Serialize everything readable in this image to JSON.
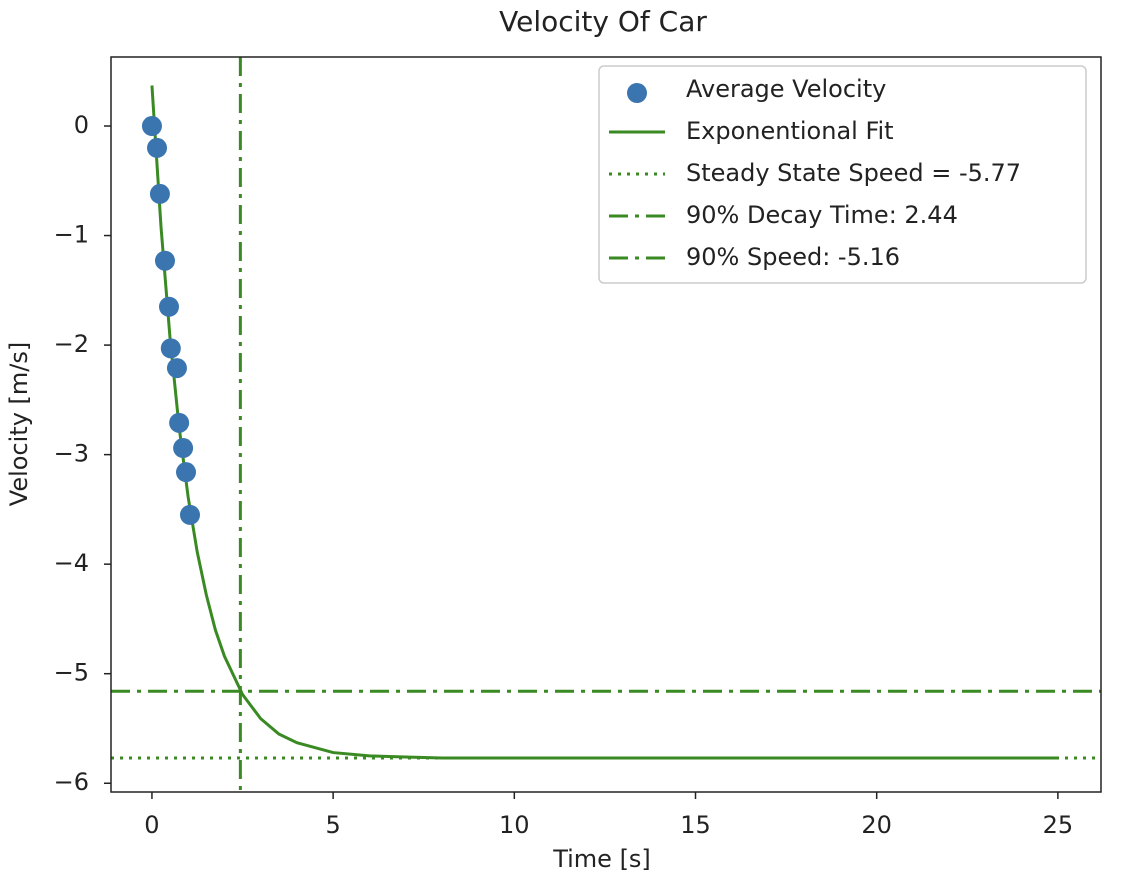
{
  "chart_data": {
    "type": "scatter",
    "title": "Velocity Of Car",
    "x_label": "Time [s]",
    "y_label": "Velocity [m/s]",
    "xlim": [
      -1.13,
      26.19
    ],
    "ylim": [
      -6.08,
      0.63
    ],
    "xticks": [
      0,
      5,
      10,
      15,
      20,
      25
    ],
    "yticks": [
      {
        "value": -6,
        "label": "−6"
      },
      {
        "value": -5,
        "label": "−5"
      },
      {
        "value": -4,
        "label": "−4"
      },
      {
        "value": -3,
        "label": "−3"
      },
      {
        "value": -2,
        "label": "−2"
      },
      {
        "value": -1,
        "label": "−1"
      },
      0
    ],
    "legend": "upper right",
    "series": [
      {
        "name": "Average Velocity",
        "type": "scatter",
        "color": "#3a75af",
        "x": [
          0,
          0.14,
          0.22,
          0.36,
          0.47,
          0.52,
          0.69,
          0.75,
          0.86,
          0.94,
          1.05
        ],
        "values": [
          0,
          -0.2,
          -0.62,
          -1.23,
          -1.65,
          -2.03,
          -2.21,
          -2.71,
          -2.94,
          -3.16,
          -3.55
        ]
      },
      {
        "name": "Exponentional Fit",
        "type": "line",
        "linestyle": "solid",
        "color": "#3a8a23",
        "x": [
          0,
          0.25,
          0.5,
          0.75,
          1,
          1.25,
          1.5,
          1.75,
          2,
          2.5,
          3,
          3.5,
          4,
          5,
          6,
          7,
          8,
          10,
          15,
          20,
          25
        ],
        "values": [
          0.37,
          -0.92,
          -1.94,
          -2.75,
          -3.39,
          -3.89,
          -4.28,
          -4.6,
          -4.84,
          -5.19,
          -5.41,
          -5.55,
          -5.63,
          -5.72,
          -5.75,
          -5.76,
          -5.77,
          -5.77,
          -5.77,
          -5.77,
          -5.77
        ]
      },
      {
        "name": "Steady State Speed = -5.77",
        "type": "hline",
        "linestyle": "dotted",
        "color": "#3a8a23",
        "value": -5.77
      },
      {
        "name": "90% Decay Time: 2.44",
        "type": "vline",
        "linestyle": "dashdot",
        "color": "#3a8a23",
        "value": 2.44
      },
      {
        "name": "90% Speed: -5.16",
        "type": "hline",
        "linestyle": "dashdot",
        "color": "#3a8a23",
        "value": -5.16
      }
    ]
  }
}
